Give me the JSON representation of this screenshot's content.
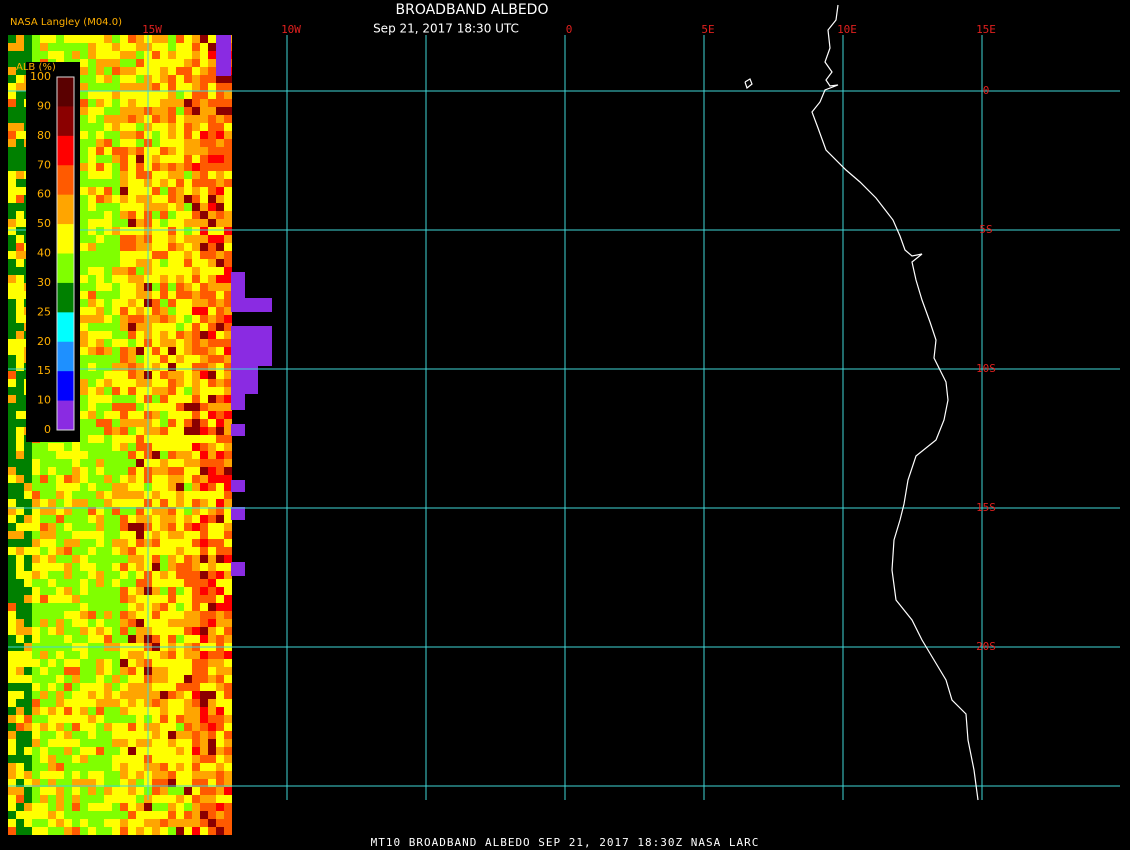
{
  "header": {
    "title": "BROADBAND ALBEDO",
    "subtitle": "Sep 21, 2017 18:30 UTC",
    "source": "NASA Langley (M04.0)"
  },
  "legend": {
    "label": "ALB (%)",
    "ticks": [
      "100",
      "90",
      "80",
      "70",
      "60",
      "50",
      "40",
      "30",
      "25",
      "20",
      "15",
      "10",
      "0"
    ],
    "colors": [
      "#5a0000",
      "#8b0000",
      "#ff0000",
      "#ff5a00",
      "#ffa500",
      "#ffff00",
      "#80ff00",
      "#008000",
      "#00ffff",
      "#1e90ff",
      "#0000ff",
      "#8a2be2"
    ]
  },
  "map": {
    "lon_labels": [
      "15W",
      "10W",
      "0",
      "5E",
      "10E",
      "15E"
    ],
    "lat_labels": [
      "0",
      "5S",
      "10S",
      "15S",
      "20S"
    ]
  },
  "footer": "MT10  BROADBAND ALBEDO   SEP 21, 2017 18:30Z   NASA LARC"
}
